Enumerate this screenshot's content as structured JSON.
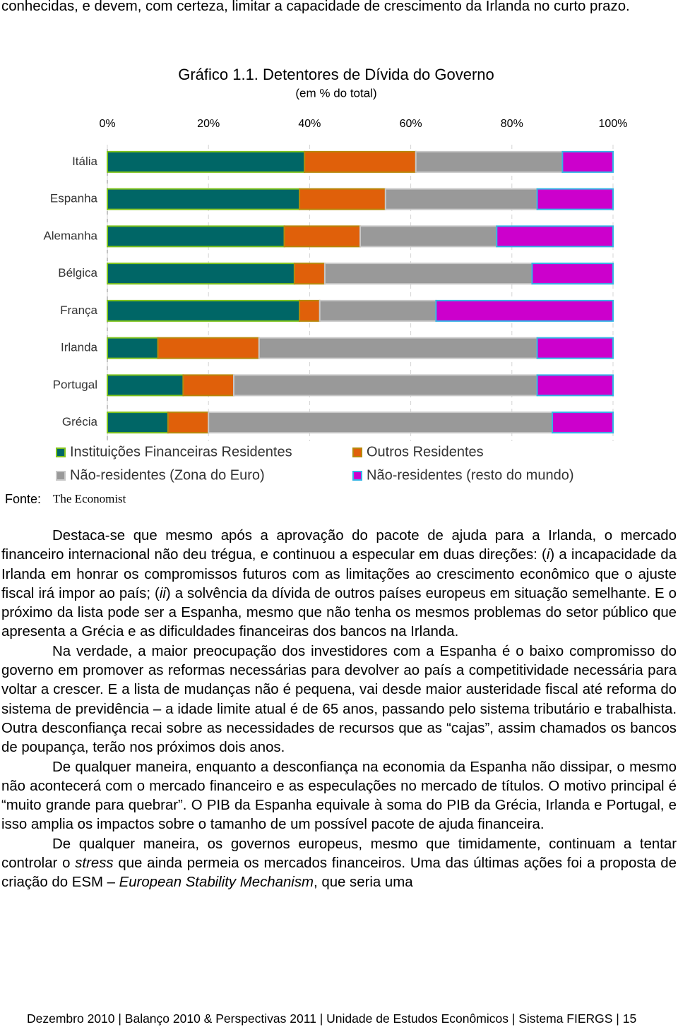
{
  "intro_text": "conhecidas, e devem, com certeza, limitar a capacidade de crescimento da Irlanda no curto prazo.",
  "chart_data": {
    "type": "stacked-barh",
    "title": "Gráfico 1.1. Detentores de Dívida do Governo",
    "subtitle": "(em % do total)",
    "categories": [
      "Itália",
      "Espanha",
      "Alemanha",
      "Bélgica",
      "França",
      "Irlanda",
      "Portugal",
      "Grécia"
    ],
    "series": [
      {
        "name": "Instituições Financeiras Residentes",
        "color": "#006666",
        "values": [
          39,
          38,
          35,
          37,
          38,
          10,
          15,
          12
        ]
      },
      {
        "name": "Outros Residentes",
        "color": "#e0600a",
        "values": [
          22,
          17,
          15,
          6,
          4,
          20,
          10,
          8
        ]
      },
      {
        "name": "Não-residentes (Zona do Euro)",
        "color": "#999999",
        "values": [
          29,
          30,
          27,
          41,
          23,
          55,
          60,
          68
        ]
      },
      {
        "name": "Não-residentes (resto do mundo)",
        "color": "#cc00cc",
        "values": [
          10,
          15,
          23,
          16,
          35,
          15,
          15,
          12
        ]
      }
    ],
    "xlim": [
      0,
      100
    ],
    "xticks": [
      {
        "value": 0,
        "label": "0%"
      },
      {
        "value": 20,
        "label": "20%"
      },
      {
        "value": 40,
        "label": "40%"
      },
      {
        "value": 60,
        "label": "60%"
      },
      {
        "value": 80,
        "label": "80%"
      },
      {
        "value": 100,
        "label": "100%"
      }
    ],
    "grid": true
  },
  "source": {
    "label": "Fonte:",
    "name": "The Economist"
  },
  "paragraphs": [
    [
      "Destaca-se que mesmo após a aprovação do pacote de ajuda para a Irlanda, o mercado financeiro internacional não deu trégua, e continuou a especular em duas direções: (",
      "i",
      ") a incapacidade da Irlanda em honrar os compromissos futuros com as limitações ao crescimento econômico que o ajuste fiscal irá impor ao país; (",
      "ii",
      ") a solvência da dívida de outros países europeus em situação semelhante. E o próximo da lista pode ser a Espanha, mesmo que não tenha os mesmos problemas do setor público que apresenta a Grécia e as dificuldades financeiras dos bancos na Irlanda."
    ],
    [
      "Na verdade, a maior preocupação dos investidores com a Espanha é o baixo compromisso do governo em promover as reformas necessárias para devolver ao país a competitividade necessária para voltar a crescer. E a lista de mudanças não é pequena, vai desde maior austeridade fiscal até reforma do sistema de previdência – a idade limite atual é de 65 anos, passando pelo sistema tributário e trabalhista. Outra desconfiança recai sobre as necessidades de recursos que as “cajas”, assim chamados os bancos de poupança, terão nos próximos dois anos."
    ],
    [
      "De qualquer maneira, enquanto a desconfiança na economia da Espanha não dissipar, o mesmo não acontecerá com o mercado financeiro e as especulações no mercado de títulos. O motivo principal é “muito grande para quebrar”. O PIB da Espanha equivale à soma do PIB da Grécia, Irlanda e Portugal, e isso amplia os impactos sobre o tamanho de um possível pacote de ajuda financeira."
    ],
    [
      "De qualquer maneira, os governos europeus, mesmo que timidamente, continuam a tentar controlar o ",
      "stress",
      " que ainda permeia os mercados financeiros. Uma das últimas ações foi a proposta de criação do ESM – ",
      "European Stability Mechanism",
      ", que seria uma"
    ]
  ],
  "footer": "Dezembro 2010 | Balanço 2010 & Perspectivas 2011 | Unidade de Estudos Econômicos | Sistema FIERGS | 15"
}
